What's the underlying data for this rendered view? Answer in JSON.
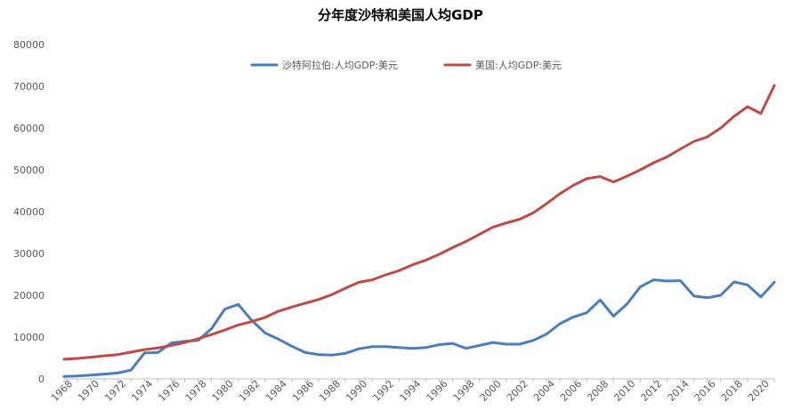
{
  "chart_data": {
    "type": "line",
    "title": "分年度沙特和美国人均GDP",
    "xlabel": "",
    "ylabel": "",
    "ylim": [
      0,
      80000
    ],
    "xlim": [
      1968,
      2021
    ],
    "grid": false,
    "legend_position": "top-center",
    "y_ticks": [
      "0",
      "10000",
      "20000",
      "30000",
      "40000",
      "50000",
      "60000",
      "70000",
      "80000"
    ],
    "x_ticks": [
      "1968",
      "1970",
      "1972",
      "1974",
      "1976",
      "1978",
      "1980",
      "1982",
      "1984",
      "1986",
      "1988",
      "1990",
      "1992",
      "1994",
      "1996",
      "1998",
      "2000",
      "2002",
      "2004",
      "2006",
      "2008",
      "2010",
      "2012",
      "2014",
      "2016",
      "2018",
      "2020"
    ],
    "x": [
      1968,
      1969,
      1970,
      1971,
      1972,
      1973,
      1974,
      1975,
      1976,
      1977,
      1978,
      1979,
      1980,
      1981,
      1982,
      1983,
      1984,
      1985,
      1986,
      1987,
      1988,
      1989,
      1990,
      1991,
      1992,
      1993,
      1994,
      1995,
      1996,
      1997,
      1998,
      1999,
      2000,
      2001,
      2002,
      2003,
      2004,
      2005,
      2006,
      2007,
      2008,
      2009,
      2010,
      2011,
      2012,
      2013,
      2014,
      2015,
      2016,
      2017,
      2018,
      2019,
      2020,
      2021
    ],
    "series": [
      {
        "name": "沙特阿拉伯:人均GDP:美元",
        "color": "#4a7ebb",
        "values": [
          600,
          700,
          900,
          1150,
          1400,
          2100,
          6200,
          6300,
          8600,
          9000,
          9200,
          12000,
          16700,
          17800,
          14000,
          11000,
          9500,
          7800,
          6300,
          5800,
          5700,
          6100,
          7200,
          7700,
          7700,
          7500,
          7300,
          7500,
          8200,
          8500,
          7300,
          8000,
          8700,
          8300,
          8300,
          9200,
          10700,
          13200,
          14800,
          15800,
          18900,
          15000,
          17900,
          22000,
          23700,
          23400,
          23500,
          19800,
          19400,
          20000,
          23200,
          22500,
          19600,
          23100
        ]
      },
      {
        "name": "美国:人均GDP:美元",
        "color": "#be4b48",
        "values": [
          4700,
          4900,
          5200,
          5500,
          5800,
          6400,
          7000,
          7400,
          8000,
          8700,
          9600,
          10600,
          11700,
          12900,
          13700,
          14700,
          16200,
          17200,
          18100,
          19000,
          20200,
          21700,
          23100,
          23700,
          24900,
          25900,
          27300,
          28400,
          29800,
          31400,
          32900,
          34600,
          36300,
          37300,
          38200,
          39700,
          41900,
          44300,
          46300,
          47900,
          48400,
          47100,
          48500,
          50000,
          51700,
          53100,
          55000,
          56800,
          57900,
          60000,
          62800,
          65100,
          63500,
          70200
        ]
      }
    ]
  }
}
